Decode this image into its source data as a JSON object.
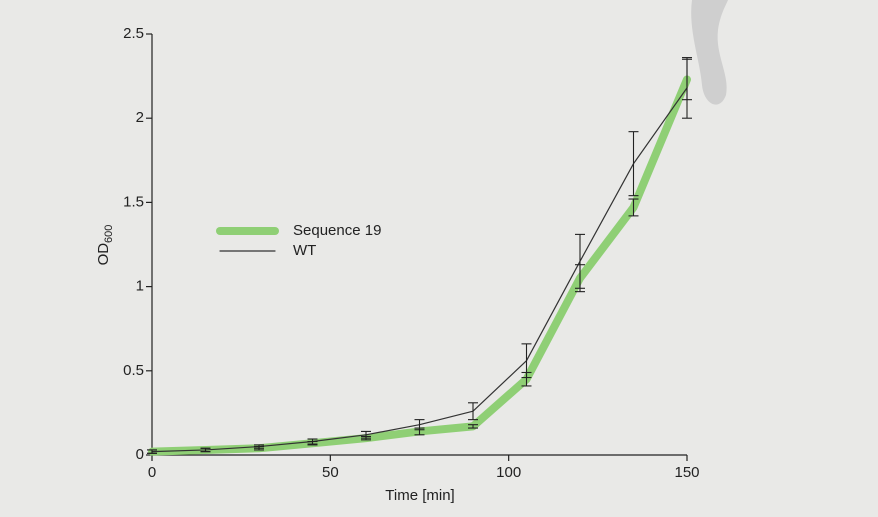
{
  "chart_data": {
    "type": "line",
    "xlabel": "Time [min]",
    "ylabel": "OD",
    "ylabel_subscript": "600",
    "x": [
      0,
      15,
      30,
      45,
      60,
      75,
      90,
      105,
      120,
      135,
      150
    ],
    "xlim": [
      0,
      150
    ],
    "xticks": [
      0,
      50,
      100,
      150
    ],
    "ylim": [
      0,
      2.5
    ],
    "yticks": [
      0,
      0.5,
      1,
      1.5,
      2,
      2.5
    ],
    "legend": "center-left",
    "series": [
      {
        "name": "Sequence 19",
        "color": "#8fcf75",
        "width": 8,
        "values": [
          0.02,
          0.03,
          0.04,
          0.07,
          0.1,
          0.14,
          0.17,
          0.45,
          1.05,
          1.47,
          2.23
        ],
        "errors": [
          0.01,
          0.01,
          0.01,
          0.01,
          0.01,
          0.02,
          0.01,
          0.04,
          0.08,
          0.05,
          0.12
        ]
      },
      {
        "name": "WT",
        "color": "#333333",
        "width": 1.2,
        "values": [
          0.02,
          0.03,
          0.05,
          0.08,
          0.12,
          0.18,
          0.26,
          0.56,
          1.15,
          1.73,
          2.18
        ],
        "errors": [
          0.01,
          0.01,
          0.01,
          0.015,
          0.02,
          0.03,
          0.05,
          0.1,
          0.16,
          0.19,
          0.18
        ]
      }
    ]
  }
}
